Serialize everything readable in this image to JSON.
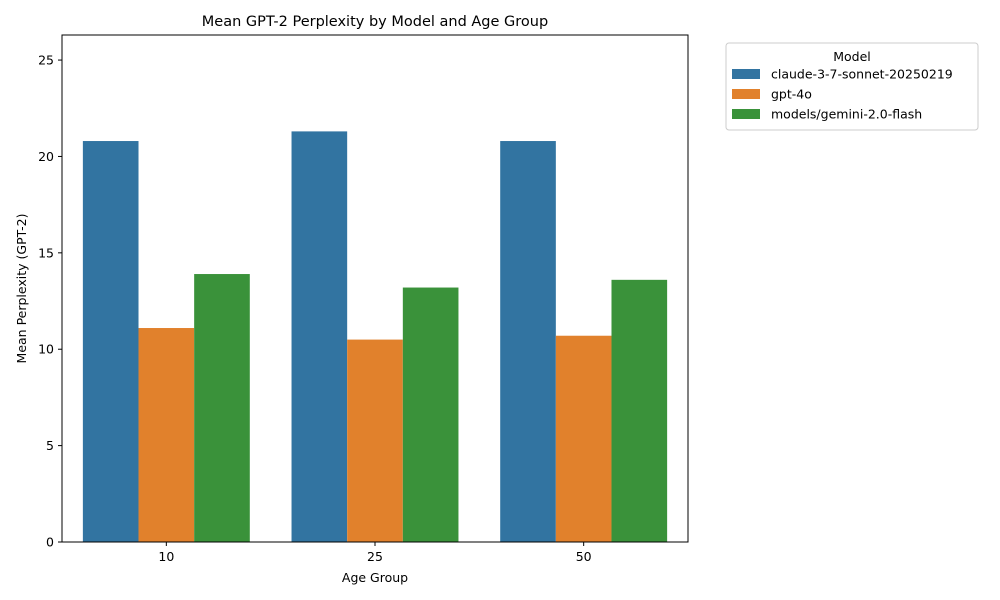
{
  "chart_data": {
    "type": "bar",
    "title": "Mean GPT-2 Perplexity by Model and Age Group",
    "xlabel": "Age Group",
    "ylabel": "Mean Perplexity (GPT-2)",
    "categories": [
      "10",
      "25",
      "50"
    ],
    "ylim": [
      0,
      26.3
    ],
    "yticks": [
      0,
      5,
      10,
      15,
      20,
      25
    ],
    "grid": false,
    "legend": {
      "title": "Model",
      "placement": "outside-right-top"
    },
    "series": [
      {
        "name": "claude-3-7-sonnet-20250219",
        "color": "#3274a1",
        "values": [
          20.8,
          21.3,
          20.8
        ]
      },
      {
        "name": "gpt-4o",
        "color": "#e1812c",
        "values": [
          11.1,
          10.5,
          10.7
        ]
      },
      {
        "name": "models/gemini-2.0-flash",
        "color": "#3a923a",
        "values": [
          13.9,
          13.2,
          13.6
        ]
      }
    ]
  }
}
